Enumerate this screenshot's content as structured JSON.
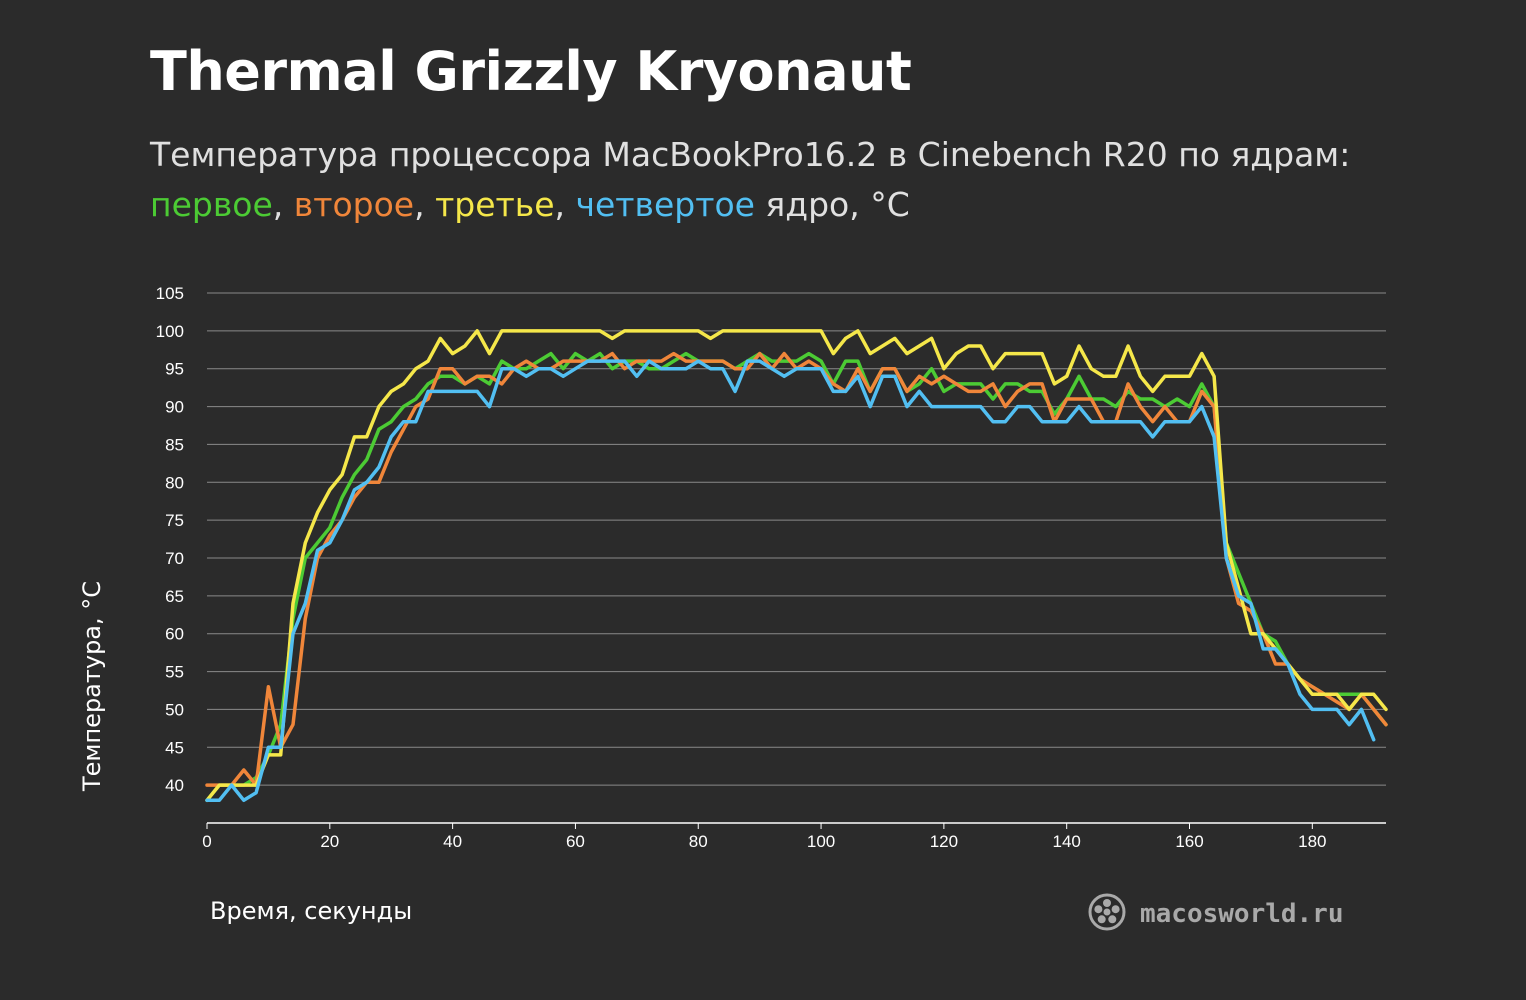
{
  "title": "Thermal Grizzly Kryonaut",
  "subtitle": {
    "line1": "Температура процессора MacBookPro16.2 в Cinebench R20 по ядрам:",
    "cores": [
      {
        "label": "первое",
        "color": "#4ccb34"
      },
      {
        "label": "второе",
        "color": "#f0863a"
      },
      {
        "label": "третье",
        "color": "#f5e74a"
      },
      {
        "label": "четвертое",
        "color": "#52bff2"
      }
    ],
    "sep": ", ",
    "suffix": " ядро, °C"
  },
  "brand": {
    "text": "macosworld.ru",
    "icon": "reel-icon"
  },
  "chart_data": {
    "type": "line",
    "xlabel": "Время, секунды",
    "ylabel": "Температура, °C",
    "xlim": [
      0,
      192
    ],
    "ylim": [
      35,
      105
    ],
    "x_ticks": [
      0,
      20,
      40,
      60,
      80,
      100,
      120,
      140,
      160,
      180
    ],
    "y_ticks": [
      40,
      45,
      50,
      55,
      60,
      65,
      70,
      75,
      80,
      85,
      90,
      95,
      100,
      105
    ],
    "grid": true,
    "x": [
      0,
      2,
      4,
      6,
      8,
      10,
      12,
      14,
      16,
      18,
      20,
      22,
      24,
      26,
      28,
      30,
      32,
      34,
      36,
      38,
      40,
      42,
      44,
      46,
      48,
      50,
      52,
      54,
      56,
      58,
      60,
      62,
      64,
      66,
      68,
      70,
      72,
      74,
      76,
      78,
      80,
      82,
      84,
      86,
      88,
      90,
      92,
      94,
      96,
      98,
      100,
      102,
      104,
      106,
      108,
      110,
      112,
      114,
      116,
      118,
      120,
      122,
      124,
      126,
      128,
      130,
      132,
      134,
      136,
      138,
      140,
      142,
      144,
      146,
      148,
      150,
      152,
      154,
      156,
      158,
      160,
      162,
      164,
      166,
      168,
      170,
      172,
      174,
      176,
      178,
      180,
      182,
      184,
      186,
      188,
      190,
      192
    ],
    "series": [
      {
        "color": "#4ccb34",
        "values": [
          38,
          40,
          40,
          40,
          41,
          44,
          48,
          62,
          70,
          72,
          74,
          78,
          81,
          83,
          87,
          88,
          90,
          91,
          93,
          94,
          94,
          93,
          94,
          93,
          96,
          95,
          95,
          96,
          97,
          95,
          97,
          96,
          97,
          95,
          96,
          96,
          95,
          95,
          96,
          97,
          96,
          96,
          96,
          95,
          96,
          97,
          96,
          96,
          96,
          97,
          96,
          93,
          96,
          96,
          92,
          95,
          95,
          92,
          93,
          95,
          92,
          93,
          93,
          93,
          91,
          93,
          93,
          92,
          92,
          89,
          91,
          94,
          91,
          91,
          90,
          92,
          91,
          91,
          90,
          91,
          90,
          93,
          90,
          72,
          68,
          64,
          60,
          59,
          56,
          54,
          53,
          52,
          52,
          52,
          52,
          50,
          48
        ]
      },
      {
        "color": "#f0863a",
        "values": [
          40,
          40,
          40,
          42,
          40,
          53,
          45,
          48,
          62,
          70,
          73,
          75,
          78,
          80,
          80,
          84,
          87,
          90,
          91,
          95,
          95,
          93,
          94,
          94,
          93,
          95,
          96,
          95,
          95,
          96,
          96,
          96,
          96,
          97,
          95,
          96,
          96,
          96,
          97,
          96,
          96,
          96,
          96,
          95,
          95,
          97,
          95,
          97,
          95,
          96,
          95,
          93,
          92,
          95,
          92,
          95,
          95,
          92,
          94,
          93,
          94,
          93,
          92,
          92,
          93,
          90,
          92,
          93,
          93,
          88,
          91,
          91,
          91,
          88,
          88,
          93,
          90,
          88,
          90,
          88,
          88,
          92,
          90,
          70,
          64,
          63,
          60,
          56,
          56,
          54,
          53,
          52,
          51,
          50,
          52,
          50,
          48
        ]
      },
      {
        "color": "#f5e74a",
        "values": [
          38,
          40,
          40,
          40,
          40,
          44,
          44,
          64,
          72,
          76,
          79,
          81,
          86,
          86,
          90,
          92,
          93,
          95,
          96,
          99,
          97,
          98,
          100,
          97,
          100,
          100,
          100,
          100,
          100,
          100,
          100,
          100,
          100,
          99,
          100,
          100,
          100,
          100,
          100,
          100,
          100,
          99,
          100,
          100,
          100,
          100,
          100,
          100,
          100,
          100,
          100,
          97,
          99,
          100,
          97,
          98,
          99,
          97,
          98,
          99,
          95,
          97,
          98,
          98,
          95,
          97,
          97,
          97,
          97,
          93,
          94,
          98,
          95,
          94,
          94,
          98,
          94,
          92,
          94,
          94,
          94,
          97,
          94,
          72,
          66,
          60,
          60,
          58,
          56,
          54,
          52,
          52,
          52,
          50,
          52,
          52,
          50
        ]
      },
      {
        "color": "#52bff2",
        "values": [
          38,
          38,
          40,
          38,
          39,
          45,
          45,
          60,
          64,
          71,
          72,
          75,
          79,
          80,
          82,
          86,
          88,
          88,
          92,
          92,
          92,
          92,
          92,
          90,
          95,
          95,
          94,
          95,
          95,
          94,
          95,
          96,
          96,
          96,
          96,
          94,
          96,
          95,
          95,
          95,
          96,
          95,
          95,
          92,
          96,
          96,
          95,
          94,
          95,
          95,
          95,
          92,
          92,
          94,
          90,
          94,
          94,
          90,
          92,
          90,
          90,
          90,
          90,
          90,
          88,
          88,
          90,
          90,
          88,
          88,
          88,
          90,
          88,
          88,
          88,
          88,
          88,
          86,
          88,
          88,
          88,
          90,
          86,
          70,
          65,
          64,
          58,
          58,
          56,
          52,
          50,
          50,
          50,
          48,
          50,
          46,
          null
        ]
      }
    ]
  }
}
